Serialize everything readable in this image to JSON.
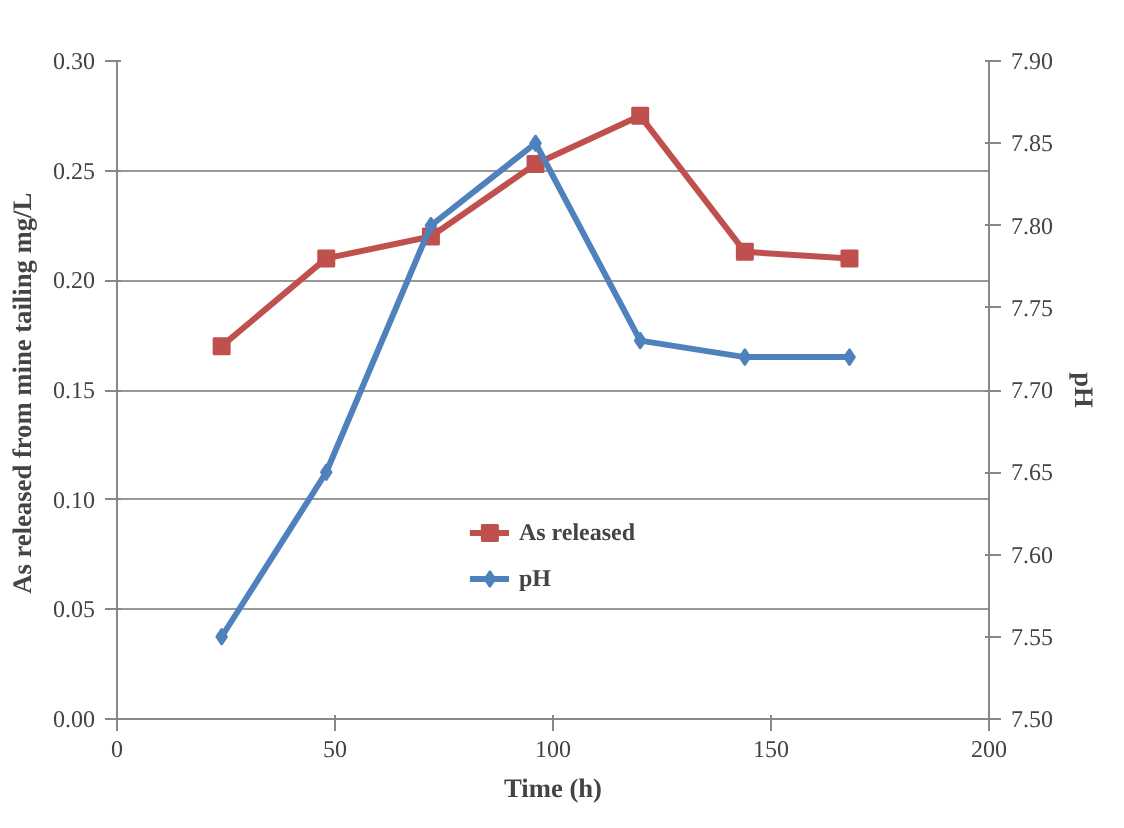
{
  "chart_data": {
    "type": "line",
    "xlabel": "Time (h)",
    "ylabel": "As released from  mine tailing mg/L",
    "y2label": "pH",
    "x": [
      24,
      48,
      72,
      96,
      120,
      144,
      168
    ],
    "series": [
      {
        "name": "As released",
        "color": "#c0504d",
        "marker": "square",
        "values": [
          0.17,
          0.21,
          0.22,
          0.253,
          0.275,
          0.213,
          0.21
        ]
      },
      {
        "name": "pH",
        "color": "#4f81bd",
        "marker": "diamond",
        "axis": "y2",
        "values": [
          7.55,
          7.65,
          7.8,
          7.85,
          7.73,
          7.72,
          7.72
        ]
      }
    ],
    "xlim": [
      0,
      200
    ],
    "xticks": [
      0,
      50,
      100,
      150,
      200
    ],
    "ylim": [
      0,
      0.3
    ],
    "yticks": [
      {
        "value": 0,
        "label": "0.00"
      },
      {
        "value": 0.05,
        "label": "0.05"
      },
      {
        "value": 0.1,
        "label": "0.10"
      },
      {
        "value": 0.15,
        "label": "0.15"
      },
      {
        "value": 0.2,
        "label": "0.20"
      },
      {
        "value": 0.25,
        "label": "0.25"
      },
      {
        "value": 0.3,
        "label": "0.30"
      }
    ],
    "y2lim": [
      7.5,
      7.9
    ],
    "y2ticks": [
      {
        "value": 7.5,
        "label": "7.50"
      },
      {
        "value": 7.55,
        "label": "7.55"
      },
      {
        "value": 7.6,
        "label": "7.60"
      },
      {
        "value": 7.65,
        "label": "7.65"
      },
      {
        "value": 7.7,
        "label": "7.70"
      },
      {
        "value": 7.75,
        "label": "7.75"
      },
      {
        "value": 7.8,
        "label": "7.80"
      },
      {
        "value": 7.85,
        "label": "7.85"
      },
      {
        "value": 7.9,
        "label": "7.90"
      }
    ],
    "grid": "y",
    "legend": "bottom"
  }
}
